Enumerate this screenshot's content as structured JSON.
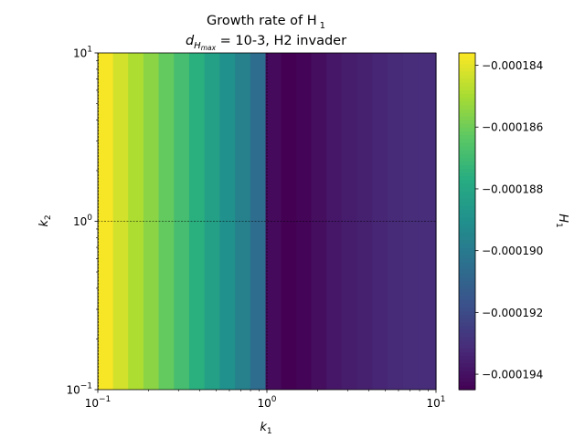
{
  "chart_data": {
    "type": "heatmap",
    "title_line1": "Growth rate of H",
    "title_line1_sub": "1",
    "title_line2_d": "d",
    "title_line2_sub": "H",
    "title_line2_subsub": "max",
    "title_line2_rest": " = 10-3, H2 invader",
    "xlabel": "k",
    "xlabel_sub": "1",
    "ylabel": "k",
    "ylabel_sub": "2",
    "x_scale": "log",
    "y_scale": "log",
    "xlim": [
      0.1,
      10
    ],
    "ylim": [
      0.1,
      10
    ],
    "x_ticks": [
      {
        "value": 0.1,
        "base": "10",
        "exp": "−1"
      },
      {
        "value": 1,
        "base": "10",
        "exp": "0"
      },
      {
        "value": 10,
        "base": "10",
        "exp": "1"
      }
    ],
    "y_ticks": [
      {
        "value": 0.1,
        "base": "10",
        "exp": "−1"
      },
      {
        "value": 1,
        "base": "10",
        "exp": "0"
      },
      {
        "value": 10,
        "base": "10",
        "exp": "1"
      }
    ],
    "reference_lines": {
      "x": 1,
      "y": 1,
      "style": "dashed"
    },
    "colormap": "viridis",
    "colorbar": {
      "label": "H",
      "label_sub": "1",
      "vmin": -0.0001945,
      "vmax": -0.0001836,
      "ticks": [
        {
          "value": -0.000184,
          "label": "−0.000184"
        },
        {
          "value": -0.000186,
          "label": "−0.000186"
        },
        {
          "value": -0.000188,
          "label": "−0.000188"
        },
        {
          "value": -0.00019,
          "label": "−0.000190"
        },
        {
          "value": -0.000192,
          "label": "−0.000192"
        },
        {
          "value": -0.000194,
          "label": "−0.000194"
        }
      ]
    },
    "columns_k1": [
      0.1,
      0.123,
      0.151,
      0.186,
      0.229,
      0.282,
      0.347,
      0.427,
      0.526,
      0.648,
      0.797,
      0.982,
      1.21,
      1.49,
      1.83,
      2.25,
      2.77,
      3.41,
      4.2,
      5.17,
      6.37,
      7.84
    ],
    "values": [
      -0.0001837,
      -0.0001843,
      -0.0001849,
      -0.0001855,
      -0.0001862,
      -0.0001869,
      -0.0001876,
      -0.0001883,
      -0.000189,
      -0.0001897,
      -0.0001906,
      -0.0001942,
      -0.0001945,
      -0.0001944,
      -0.0001941,
      -0.0001938,
      -0.0001936,
      -0.0001935,
      -0.0001933,
      -0.0001932,
      -0.0001931,
      -0.0001931
    ]
  }
}
